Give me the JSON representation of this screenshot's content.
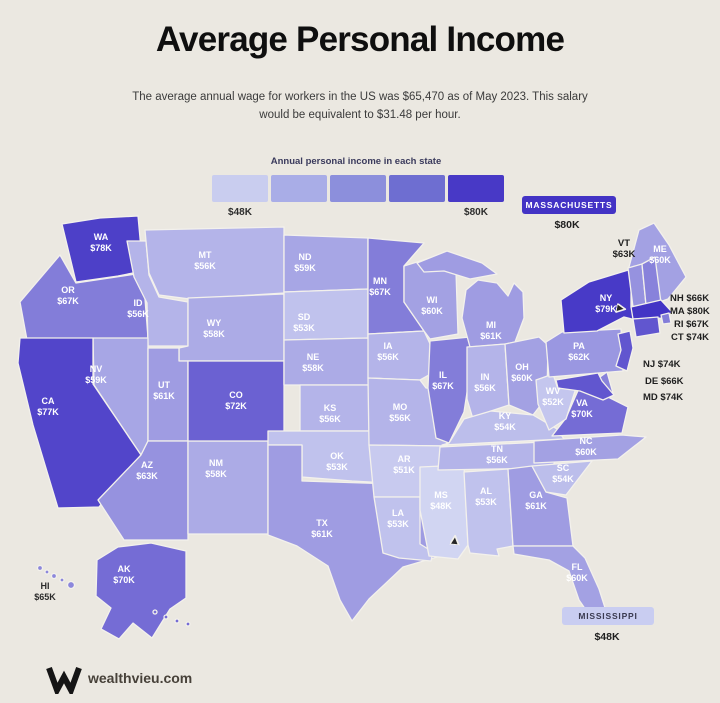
{
  "title": "Average Personal Income",
  "subtitle": "The average annual wage for workers in the US was $65,470 as of May 2023. This salary would be equivalent to $31.48 per hour.",
  "legend": {
    "title": "Annual personal income in each state",
    "min_label": "$48K",
    "max_label": "$80K",
    "colors": [
      "#c9cdef",
      "#a9ade7",
      "#8c8fdc",
      "#6e6ed1",
      "#4839c6"
    ]
  },
  "map": {
    "scale": {
      "min": 48,
      "max": 80,
      "light": "#d1d5f2",
      "dark": "#4334c5"
    },
    "states": {
      "WA": {
        "name": "WA",
        "value": "$78K",
        "amount": 78
      },
      "OR": {
        "name": "OR",
        "value": "$67K",
        "amount": 67
      },
      "CA": {
        "name": "CA",
        "value": "$77K",
        "amount": 77
      },
      "NV": {
        "name": "NV",
        "value": "$59K",
        "amount": 59
      },
      "ID": {
        "name": "ID",
        "value": "$56K",
        "amount": 56
      },
      "MT": {
        "name": "MT",
        "value": "$56K",
        "amount": 56
      },
      "WY": {
        "name": "WY",
        "value": "$58K",
        "amount": 58
      },
      "UT": {
        "name": "UT",
        "value": "$61K",
        "amount": 61
      },
      "AZ": {
        "name": "AZ",
        "value": "$63K",
        "amount": 63
      },
      "NM": {
        "name": "NM",
        "value": "$58K",
        "amount": 58
      },
      "CO": {
        "name": "CO",
        "value": "$72K",
        "amount": 72
      },
      "ND": {
        "name": "ND",
        "value": "$59K",
        "amount": 59
      },
      "SD": {
        "name": "SD",
        "value": "$53K",
        "amount": 53
      },
      "NE": {
        "name": "NE",
        "value": "$58K",
        "amount": 58
      },
      "KS": {
        "name": "KS",
        "value": "$56K",
        "amount": 56
      },
      "OK": {
        "name": "OK",
        "value": "$53K",
        "amount": 53
      },
      "TX": {
        "name": "TX",
        "value": "$61K",
        "amount": 61
      },
      "MN": {
        "name": "MN",
        "value": "$67K",
        "amount": 67
      },
      "IA": {
        "name": "IA",
        "value": "$56K",
        "amount": 56
      },
      "MO": {
        "name": "MO",
        "value": "$56K",
        "amount": 56
      },
      "AR": {
        "name": "AR",
        "value": "$51K",
        "amount": 51
      },
      "LA": {
        "name": "LA",
        "value": "$53K",
        "amount": 53
      },
      "WI": {
        "name": "WI",
        "value": "$60K",
        "amount": 60
      },
      "IL": {
        "name": "IL",
        "value": "$67K",
        "amount": 67
      },
      "MS": {
        "name": "MS",
        "value": "$48K",
        "amount": 48
      },
      "MI": {
        "name": "MI",
        "value": "$61K",
        "amount": 61
      },
      "IN": {
        "name": "IN",
        "value": "$56K",
        "amount": 56
      },
      "OH": {
        "name": "OH",
        "value": "$60K",
        "amount": 60
      },
      "KY": {
        "name": "KY",
        "value": "$54K",
        "amount": 54
      },
      "TN": {
        "name": "TN",
        "value": "$56K",
        "amount": 56
      },
      "AL": {
        "name": "AL",
        "value": "$53K",
        "amount": 53
      },
      "GA": {
        "name": "GA",
        "value": "$61K",
        "amount": 61
      },
      "FL": {
        "name": "FL",
        "value": "$60K",
        "amount": 60
      },
      "SC": {
        "name": "SC",
        "value": "$54K",
        "amount": 54
      },
      "NC": {
        "name": "NC",
        "value": "$60K",
        "amount": 60
      },
      "VA": {
        "name": "VA",
        "value": "$70K",
        "amount": 70
      },
      "WV": {
        "name": "WV",
        "value": "$52K",
        "amount": 52
      },
      "PA": {
        "name": "PA",
        "value": "$62K",
        "amount": 62
      },
      "NY": {
        "name": "NY",
        "value": "$79K",
        "amount": 79
      },
      "NJ": {
        "name": "NJ",
        "value": "$74K",
        "amount": 74
      },
      "DE": {
        "name": "DE",
        "value": "$66K",
        "amount": 66
      },
      "MD": {
        "name": "MD",
        "value": "$74K",
        "amount": 74
      },
      "CT": {
        "name": "CT",
        "value": "$74K",
        "amount": 74
      },
      "RI": {
        "name": "RI",
        "value": "$67K",
        "amount": 67
      },
      "MA": {
        "name": "MA",
        "value": "$80K",
        "amount": 80
      },
      "VT": {
        "name": "VT",
        "value": "$63K",
        "amount": 63
      },
      "NH": {
        "name": "NH",
        "value": "$66K",
        "amount": 66
      },
      "ME": {
        "name": "ME",
        "value": "$60K",
        "amount": 60
      },
      "AK": {
        "name": "AK",
        "value": "$70K",
        "amount": 70
      },
      "HI": {
        "name": "HI",
        "value": "$65K",
        "amount": 65
      }
    },
    "external_labels": {
      "vt_abbr": "VT",
      "vt_value": "$63K",
      "nh": "NH $66K",
      "ma": "MA $80K",
      "ri": "RI $67K",
      "ct": "CT $74K",
      "nj": "NJ $74K",
      "de": "DE $66K",
      "md": "MD $74K"
    }
  },
  "callouts": {
    "massachusetts": {
      "label": "MASSACHUSETTS",
      "value": "$80K",
      "box_color": "#4333c5",
      "text_color": "#ffffff"
    },
    "mississippi": {
      "label": "MISSISSIPPI",
      "value": "$48K",
      "box_color": "#c9cdf1",
      "text_color": "#3a3a50"
    }
  },
  "footer": {
    "site": "wealthvieu.com"
  },
  "colors": {
    "background": "#ebe8e1"
  }
}
